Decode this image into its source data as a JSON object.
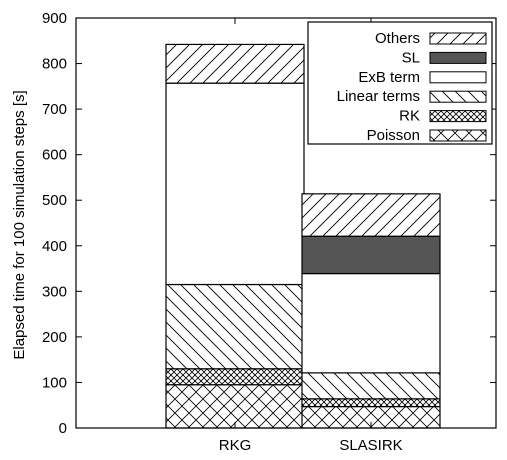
{
  "chart_data": {
    "type": "bar",
    "stacked": true,
    "categories": [
      "RKG",
      "SLASIRK"
    ],
    "ylabel": "Elapsed time for 100 simulation steps [s]",
    "xlabel": "",
    "ylim": [
      0,
      900
    ],
    "yticks": [
      0,
      100,
      200,
      300,
      400,
      500,
      600,
      700,
      800,
      900
    ],
    "grid": false,
    "legend_position": "top-right",
    "series": [
      {
        "name": "Poisson",
        "pattern": "crosshatch",
        "values": [
          95,
          47
        ]
      },
      {
        "name": "RK",
        "pattern": "dense-crosshatch",
        "values": [
          35,
          17
        ]
      },
      {
        "name": "Linear terms",
        "pattern": "backslash-hatch",
        "values": [
          185,
          57
        ]
      },
      {
        "name": "ExB term",
        "pattern": "empty",
        "values": [
          442,
          218
        ]
      },
      {
        "name": "SL",
        "pattern": "solid",
        "values": [
          0,
          82
        ]
      },
      {
        "name": "Others",
        "pattern": "slash-hatch",
        "values": [
          85,
          93
        ]
      }
    ],
    "legend_order": [
      "Others",
      "SL",
      "ExB term",
      "Linear terms",
      "RK",
      "Poisson"
    ],
    "colors": {
      "solid_fill": "#555555",
      "line": "#000000",
      "background": "#ffffff"
    }
  }
}
